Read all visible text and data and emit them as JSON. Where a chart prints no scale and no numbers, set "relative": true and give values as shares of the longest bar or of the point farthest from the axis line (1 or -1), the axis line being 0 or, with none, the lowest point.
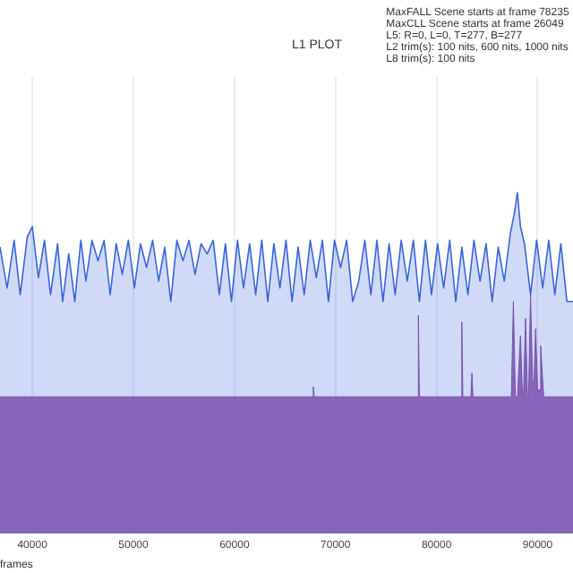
{
  "chart_data": {
    "type": "area",
    "title": "L1 PLOT",
    "xlabel": "frames",
    "relative": true,
    "grid": "x",
    "xlim": [
      36800,
      93500
    ],
    "xticks": [
      40000,
      50000,
      60000,
      70000,
      80000,
      90000
    ],
    "annotations": [
      "MaxFALL Scene starts at frame 78235",
      "MaxCLL Scene starts at frame 26049",
      "L5: R=0, L=0, T=277, B=277",
      "L2 trim(s): 100 nits, 600 nits, 1000 nits",
      "L8 trim(s): 100 nits"
    ],
    "series": [
      {
        "color": "#3a66dc",
        "x": [
          36800,
          37500,
          38200,
          38800,
          39500,
          40000,
          40600,
          41200,
          41800,
          42500,
          43000,
          43600,
          44200,
          44800,
          45300,
          45900,
          46500,
          47100,
          47700,
          48300,
          48900,
          49500,
          50100,
          50700,
          51300,
          51900,
          52500,
          53100,
          53700,
          54300,
          54900,
          55500,
          56100,
          56700,
          57300,
          57900,
          58500,
          59100,
          59700,
          60300,
          60900,
          61500,
          62100,
          62700,
          63300,
          63900,
          64500,
          65100,
          65700,
          66300,
          66900,
          67500,
          68100,
          68700,
          69300,
          69900,
          70500,
          71100,
          71700,
          72300,
          72900,
          73500,
          74100,
          74700,
          75300,
          75900,
          76500,
          77100,
          77700,
          78300,
          78900,
          79500,
          80100,
          80700,
          81300,
          81900,
          82500,
          83100,
          83700,
          84300,
          84900,
          85500,
          86100,
          86700,
          87300,
          87700,
          88000,
          88300,
          88700,
          89300,
          89900,
          90500,
          91100,
          91700,
          92300,
          92900,
          93500
        ],
        "values": [
          0.84,
          0.72,
          0.86,
          0.7,
          0.87,
          0.9,
          0.75,
          0.86,
          0.7,
          0.85,
          0.68,
          0.82,
          0.68,
          0.86,
          0.74,
          0.86,
          0.8,
          0.86,
          0.7,
          0.85,
          0.76,
          0.86,
          0.72,
          0.85,
          0.78,
          0.86,
          0.74,
          0.84,
          0.68,
          0.86,
          0.8,
          0.86,
          0.76,
          0.85,
          0.82,
          0.86,
          0.7,
          0.85,
          0.68,
          0.86,
          0.72,
          0.85,
          0.7,
          0.86,
          0.68,
          0.85,
          0.72,
          0.86,
          0.68,
          0.84,
          0.7,
          0.86,
          0.75,
          0.86,
          0.68,
          0.86,
          0.78,
          0.86,
          0.68,
          0.74,
          0.86,
          0.7,
          0.86,
          0.68,
          0.85,
          0.7,
          0.86,
          0.74,
          0.86,
          0.68,
          0.86,
          0.7,
          0.85,
          0.72,
          0.86,
          0.68,
          0.84,
          0.7,
          0.86,
          0.74,
          0.85,
          0.68,
          0.84,
          0.74,
          0.88,
          0.94,
          1,
          0.9,
          0.85,
          0.7,
          0.86,
          0.72,
          0.86,
          0.7,
          0.85,
          0.68,
          0.68
        ]
      },
      {
        "color": "#7a50b0",
        "x": [
          36800,
          67700,
          67800,
          67900,
          78100,
          78200,
          78300,
          82400,
          82500,
          82600,
          83400,
          83500,
          83600,
          87400,
          87600,
          87800,
          88000,
          88300,
          88500,
          88600,
          88800,
          89000,
          89100,
          89300,
          89500,
          89650,
          89800,
          90000,
          90150,
          90300,
          90600,
          93500
        ],
        "values": [
          0.4,
          0.4,
          0.43,
          0.4,
          0.4,
          0.64,
          0.4,
          0.4,
          0.62,
          0.4,
          0.4,
          0.47,
          0.4,
          0.4,
          0.68,
          0.4,
          0.4,
          0.58,
          0.4,
          0.4,
          0.63,
          0.4,
          0.4,
          0.7,
          0.45,
          0.45,
          0.6,
          0.42,
          0.42,
          0.55,
          0.4,
          0.4
        ]
      }
    ]
  }
}
